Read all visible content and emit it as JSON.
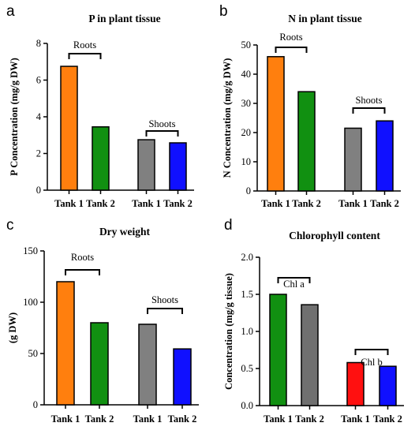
{
  "chart_data": [
    {
      "panel": "a",
      "type": "bar",
      "title": "P in plant tissue",
      "ylabel": "P Concentration (mg/g DW)",
      "ylim": [
        0,
        8
      ],
      "yticks": [
        "0",
        "2",
        "4",
        "6",
        "8"
      ],
      "categories": [
        "Tank 1",
        "Tank 2",
        "Tank 1",
        "Tank 2"
      ],
      "values": [
        6.75,
        3.45,
        2.75,
        2.58
      ],
      "colors": [
        "#ff7f0e",
        "#119011",
        "#808080",
        "#1010ff"
      ],
      "groups": [
        {
          "label": "Roots",
          "bars": [
            0,
            1
          ]
        },
        {
          "label": "Shoots",
          "bars": [
            2,
            3
          ]
        }
      ]
    },
    {
      "panel": "b",
      "type": "bar",
      "title": "N in plant tissue",
      "ylabel": "N Concentration (mg/g DW)",
      "ylim": [
        0,
        50
      ],
      "yticks": [
        "0",
        "10",
        "20",
        "30",
        "40",
        "50"
      ],
      "categories": [
        "Tank 1",
        "Tank 2",
        "Tank 1",
        "Tank 2"
      ],
      "values": [
        46,
        34,
        21.5,
        24
      ],
      "colors": [
        "#ff7f0e",
        "#119011",
        "#808080",
        "#1010ff"
      ],
      "groups": [
        {
          "label": "Roots",
          "bars": [
            0,
            1
          ]
        },
        {
          "label": "Shoots",
          "bars": [
            2,
            3
          ]
        }
      ]
    },
    {
      "panel": "c",
      "type": "bar",
      "title": "Dry weight",
      "ylabel": "(g DW)",
      "ylim": [
        0,
        150
      ],
      "yticks": [
        "0",
        "50",
        "100",
        "150"
      ],
      "categories": [
        "Tank 1",
        "Tank 2",
        "Tank 1",
        "Tank 2"
      ],
      "values": [
        120,
        80,
        78.5,
        54.5
      ],
      "colors": [
        "#ff7f0e",
        "#119011",
        "#808080",
        "#1010ff"
      ],
      "groups": [
        {
          "label": "Roots",
          "bars": [
            0,
            1
          ]
        },
        {
          "label": "Shoots",
          "bars": [
            2,
            3
          ]
        }
      ]
    },
    {
      "panel": "d",
      "type": "bar",
      "title": "Chlorophyll content",
      "ylabel": "Concentration (mg/g tissue)",
      "ylim": [
        0,
        2.0
      ],
      "yticks": [
        "0.0",
        "0.5",
        "1.0",
        "1.5",
        "2.0"
      ],
      "categories": [
        "Tank 1",
        "Tank 2",
        "Tank 1",
        "Tank 2"
      ],
      "values": [
        1.5,
        1.36,
        0.58,
        0.53
      ],
      "colors": [
        "#119011",
        "#707070",
        "#ff1010",
        "#1010ff"
      ],
      "groups": [
        {
          "label": "Chl a",
          "bars": [
            0,
            1
          ]
        },
        {
          "label": "Chl b",
          "bars": [
            2,
            3
          ]
        }
      ]
    }
  ]
}
